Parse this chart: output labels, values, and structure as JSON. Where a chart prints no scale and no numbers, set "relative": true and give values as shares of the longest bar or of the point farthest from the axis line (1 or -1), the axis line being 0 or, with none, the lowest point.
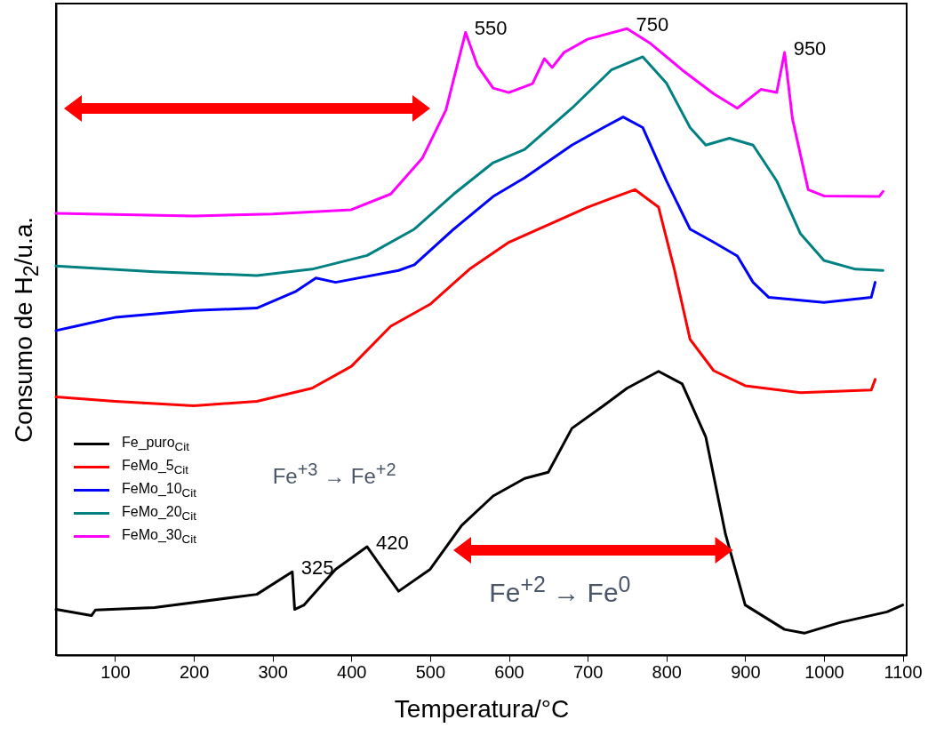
{
  "chart_data": {
    "type": "line",
    "relative": true,
    "xlabel": "Temperatura/°C",
    "ylabel": "Consumo de H$_{2}$/u.a.",
    "xlim": [
      25,
      1105
    ],
    "xticks": [
      100,
      200,
      300,
      400,
      500,
      600,
      700,
      800,
      900,
      1000,
      1100
    ],
    "legend": "bottom left",
    "grid": false,
    "series": [
      {
        "name": "Fe_puro$_{Cit}$",
        "color": "#000000",
        "x": [
          25,
          70,
          75,
          150,
          280,
          325,
          328,
          340,
          380,
          420,
          440,
          460,
          500,
          540,
          580,
          620,
          650,
          680,
          720,
          750,
          790,
          820,
          850,
          875,
          900,
          950,
          975,
          1020,
          1080,
          1100
        ],
        "values": [
          0.073,
          0.063,
          0.072,
          0.076,
          0.097,
          0.133,
          0.073,
          0.08,
          0.137,
          0.173,
          0.137,
          0.102,
          0.137,
          0.207,
          0.254,
          0.282,
          0.292,
          0.362,
          0.398,
          0.426,
          0.453,
          0.433,
          0.348,
          0.193,
          0.08,
          0.041,
          0.035,
          0.052,
          0.069,
          0.08
        ]
      },
      {
        "name": "FeMo_5$_{Cit}$",
        "color": "#ff0000",
        "x": [
          25,
          100,
          200,
          280,
          350,
          400,
          450,
          500,
          550,
          600,
          650,
          700,
          730,
          760,
          790,
          810,
          830,
          860,
          900,
          970,
          1060,
          1065
        ],
        "values": [
          0.412,
          0.405,
          0.398,
          0.405,
          0.426,
          0.461,
          0.525,
          0.56,
          0.616,
          0.659,
          0.687,
          0.715,
          0.729,
          0.743,
          0.715,
          0.616,
          0.504,
          0.454,
          0.43,
          0.419,
          0.423,
          0.44
        ]
      },
      {
        "name": "FeMo_10$_{Cit}$",
        "color": "#0000ff",
        "x": [
          25,
          50,
          100,
          200,
          280,
          330,
          355,
          380,
          460,
          480,
          530,
          580,
          620,
          680,
          720,
          745,
          770,
          800,
          830,
          860,
          890,
          910,
          930,
          1000,
          1060,
          1065
        ],
        "values": [
          0.518,
          0.525,
          0.539,
          0.55,
          0.554,
          0.581,
          0.602,
          0.595,
          0.614,
          0.623,
          0.68,
          0.732,
          0.762,
          0.814,
          0.842,
          0.859,
          0.842,
          0.757,
          0.68,
          0.659,
          0.637,
          0.595,
          0.571,
          0.563,
          0.571,
          0.595
        ]
      },
      {
        "name": "FeMo_20$_{Cit}$",
        "color": "#008080",
        "x": [
          25,
          150,
          280,
          350,
          420,
          480,
          530,
          580,
          620,
          680,
          730,
          770,
          800,
          830,
          850,
          880,
          910,
          940,
          970,
          1000,
          1040,
          1075
        ],
        "values": [
          0.621,
          0.612,
          0.606,
          0.616,
          0.638,
          0.68,
          0.736,
          0.786,
          0.807,
          0.873,
          0.934,
          0.955,
          0.913,
          0.842,
          0.814,
          0.825,
          0.814,
          0.757,
          0.673,
          0.63,
          0.616,
          0.614
        ]
      },
      {
        "name": "FeMo_30$_{Cit}$",
        "color": "#ff00ff",
        "x": [
          25,
          200,
          300,
          400,
          450,
          490,
          520,
          545,
          560,
          580,
          600,
          630,
          645,
          655,
          670,
          700,
          750,
          780,
          820,
          860,
          890,
          920,
          940,
          950,
          960,
          980,
          1000,
          1070,
          1075
        ],
        "values": [
          0.705,
          0.701,
          0.704,
          0.711,
          0.736,
          0.793,
          0.87,
          0.994,
          0.941,
          0.905,
          0.898,
          0.912,
          0.952,
          0.938,
          0.962,
          0.983,
          1.0,
          0.976,
          0.934,
          0.896,
          0.873,
          0.903,
          0.898,
          0.962,
          0.856,
          0.743,
          0.733,
          0.732,
          0.74
        ]
      }
    ],
    "annotations": [
      {
        "text": "550",
        "x": 545,
        "y": 0.994
      },
      {
        "text": "750",
        "x": 750,
        "y": 1.0
      },
      {
        "text": "950",
        "x": 950,
        "y": 0.962
      },
      {
        "text": "325",
        "x": 325,
        "y": 0.133
      },
      {
        "text": "420",
        "x": 420,
        "y": 0.173
      },
      "Fe$^{+3}$ → Fe$^{+2}$",
      "Fe$^{+2}$ → Fe$^{0}$"
    ]
  }
}
